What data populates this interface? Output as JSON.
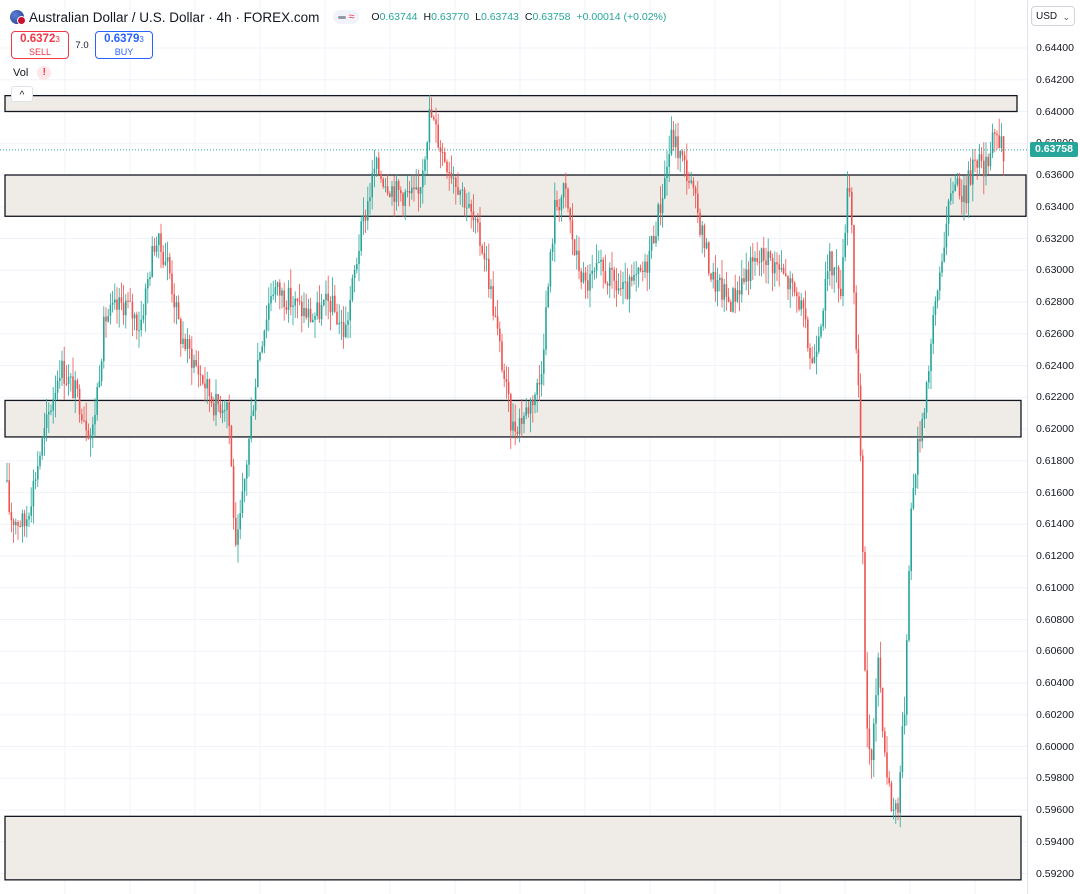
{
  "header": {
    "symbol_title": "Australian Dollar / U.S. Dollar · 4h · FOREX.com",
    "ohlc": [
      {
        "label": "O",
        "value": "0.63744"
      },
      {
        "label": "H",
        "value": "0.63770"
      },
      {
        "label": "L",
        "value": "0.63743"
      },
      {
        "label": "C",
        "value": "0.63758"
      },
      {
        "label": "",
        "value": "+0.00014 (+0.02%)"
      }
    ]
  },
  "trade": {
    "sell_price_main": "0.6372",
    "sell_price_sub": "3",
    "sell_label": "SELL",
    "spread": "7.0",
    "buy_price_main": "0.6379",
    "buy_price_sub": "3",
    "buy_label": "BUY"
  },
  "indicator": {
    "vol_label": "Vol",
    "alert_glyph": "!"
  },
  "axis": {
    "currency": "USD",
    "chevron_glyph": "⌄",
    "collapse_glyph": "^"
  },
  "colors": {
    "up": "#26a69a",
    "down": "#ef5350",
    "zone_fill": "#efebe7",
    "grid": "#f0f3fa"
  },
  "chart_data": {
    "type": "candlestick",
    "title": "Australian Dollar / U.S. Dollar · 4h · FOREX.com",
    "ylim": [
      0.5915,
      0.646
    ],
    "y_ticks": [
      0.644,
      0.642,
      0.64,
      0.638,
      0.636,
      0.634,
      0.632,
      0.63,
      0.628,
      0.626,
      0.624,
      0.622,
      0.62,
      0.618,
      0.616,
      0.614,
      0.612,
      0.61,
      0.608,
      0.606,
      0.604,
      0.602,
      0.6,
      0.598,
      0.596,
      0.594,
      0.592
    ],
    "y_tick_labels": [
      "0.64400",
      "0.64200",
      "0.64000",
      "0.63800",
      "0.63600",
      "0.63400",
      "0.63200",
      "0.63000",
      "0.62800",
      "0.62600",
      "0.62400",
      "0.62200",
      "0.62000",
      "0.61800",
      "0.61600",
      "0.61400",
      "0.61200",
      "0.61000",
      "0.60800",
      "0.60600",
      "0.60400",
      "0.60200",
      "0.60000",
      "0.59800",
      "0.59600",
      "0.59400",
      "0.59200"
    ],
    "last_price": 0.63758,
    "last_price_label": "0.63758",
    "grid": true,
    "zones": [
      {
        "low": 0.64,
        "high": 0.641
      },
      {
        "low": 0.6334,
        "high": 0.636
      },
      {
        "low": 0.6195,
        "high": 0.6218
      },
      {
        "low": 0.5916,
        "high": 0.5956
      }
    ],
    "path": [
      [
        0,
        0.62
      ],
      [
        10,
        0.6145
      ],
      [
        25,
        0.614
      ],
      [
        40,
        0.6185
      ],
      [
        60,
        0.624
      ],
      [
        78,
        0.622
      ],
      [
        92,
        0.6195
      ],
      [
        105,
        0.627
      ],
      [
        125,
        0.628
      ],
      [
        140,
        0.6265
      ],
      [
        155,
        0.632
      ],
      [
        168,
        0.6305
      ],
      [
        180,
        0.626
      ],
      [
        200,
        0.6235
      ],
      [
        215,
        0.6215
      ],
      [
        228,
        0.6218
      ],
      [
        236,
        0.6118
      ],
      [
        245,
        0.617
      ],
      [
        258,
        0.6245
      ],
      [
        272,
        0.629
      ],
      [
        292,
        0.628
      ],
      [
        312,
        0.627
      ],
      [
        330,
        0.628
      ],
      [
        345,
        0.626
      ],
      [
        360,
        0.632
      ],
      [
        375,
        0.6365
      ],
      [
        395,
        0.635
      ],
      [
        418,
        0.6345
      ],
      [
        430,
        0.64
      ],
      [
        442,
        0.6375
      ],
      [
        462,
        0.635
      ],
      [
        485,
        0.631
      ],
      [
        500,
        0.625
      ],
      [
        512,
        0.62
      ],
      [
        525,
        0.621
      ],
      [
        540,
        0.623
      ],
      [
        555,
        0.634
      ],
      [
        565,
        0.635
      ],
      [
        575,
        0.631
      ],
      [
        585,
        0.629
      ],
      [
        600,
        0.63
      ],
      [
        625,
        0.6285
      ],
      [
        645,
        0.63
      ],
      [
        660,
        0.634
      ],
      [
        672,
        0.6385
      ],
      [
        688,
        0.636
      ],
      [
        700,
        0.633
      ],
      [
        712,
        0.6295
      ],
      [
        730,
        0.628
      ],
      [
        748,
        0.63
      ],
      [
        765,
        0.631
      ],
      [
        780,
        0.63
      ],
      [
        800,
        0.628
      ],
      [
        812,
        0.624
      ],
      [
        830,
        0.6305
      ],
      [
        842,
        0.629
      ],
      [
        848,
        0.6365
      ],
      [
        852,
        0.633
      ],
      [
        856,
        0.625
      ],
      [
        860,
        0.62
      ],
      [
        866,
        0.602
      ],
      [
        872,
        0.5985
      ],
      [
        878,
        0.606
      ],
      [
        885,
        0.5995
      ],
      [
        892,
        0.596
      ],
      [
        898,
        0.5965
      ],
      [
        905,
        0.603
      ],
      [
        910,
        0.614
      ],
      [
        916,
        0.618
      ],
      [
        925,
        0.622
      ],
      [
        934,
        0.627
      ],
      [
        944,
        0.632
      ],
      [
        955,
        0.636
      ],
      [
        965,
        0.6345
      ],
      [
        975,
        0.6375
      ],
      [
        985,
        0.636
      ],
      [
        993,
        0.639
      ],
      [
        1002,
        0.63758
      ]
    ]
  }
}
